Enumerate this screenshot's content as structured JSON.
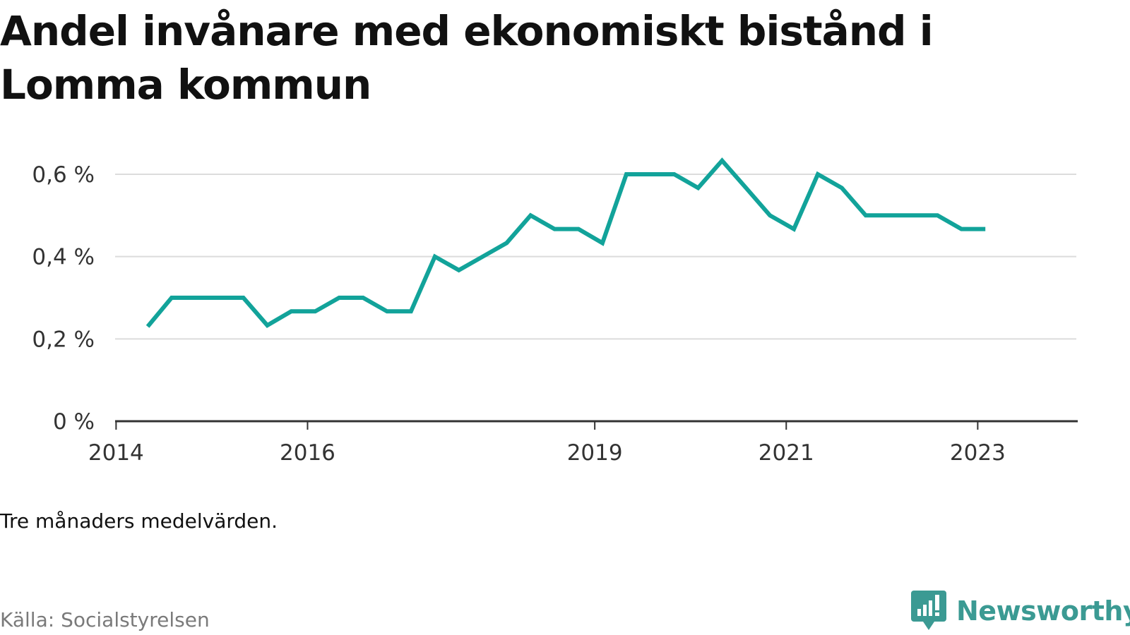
{
  "title": "Andel invånare med ekonomiskt bistånd i Lomma kommun",
  "note": "Tre månaders medelvärden.",
  "source": "Källa: Socialstyrelsen",
  "brand": {
    "name": "Newsworthy",
    "color": "#3b9a93",
    "icon": "chart-speech-bubble-icon"
  },
  "chart_data": {
    "type": "line",
    "title": "Andel invånare med ekonomiskt bistånd i Lomma kommun",
    "xlabel": "",
    "ylabel": "",
    "line_color": "#12a39a",
    "grid": true,
    "x_ticks": [
      {
        "label": "2014",
        "x": 2014.0
      },
      {
        "label": "2016",
        "x": 2016.0
      },
      {
        "label": "2019",
        "x": 2019.0
      },
      {
        "label": "2021",
        "x": 2021.0
      },
      {
        "label": "2023",
        "x": 2023.0
      }
    ],
    "y_ticks": [
      {
        "label": "0 %",
        "y": 0.0
      },
      {
        "label": "0,2 %",
        "y": 0.2
      },
      {
        "label": "0,4 %",
        "y": 0.4
      },
      {
        "label": "0,6 %",
        "y": 0.6
      }
    ],
    "xlim": [
      2013.99,
      2024.03
    ],
    "ylim": [
      0,
      0.6
    ],
    "series": [
      {
        "values": [
          {
            "x": 2014.33,
            "y": 0.23
          },
          {
            "x": 2014.58,
            "y": 0.3
          },
          {
            "x": 2014.83,
            "y": 0.3
          },
          {
            "x": 2015.08,
            "y": 0.3
          },
          {
            "x": 2015.33,
            "y": 0.3
          },
          {
            "x": 2015.58,
            "y": 0.233
          },
          {
            "x": 2015.83,
            "y": 0.267
          },
          {
            "x": 2016.08,
            "y": 0.267
          },
          {
            "x": 2016.33,
            "y": 0.3
          },
          {
            "x": 2016.58,
            "y": 0.3
          },
          {
            "x": 2016.83,
            "y": 0.267
          },
          {
            "x": 2017.08,
            "y": 0.267
          },
          {
            "x": 2017.33,
            "y": 0.4
          },
          {
            "x": 2017.58,
            "y": 0.367
          },
          {
            "x": 2017.83,
            "y": 0.4
          },
          {
            "x": 2018.08,
            "y": 0.433
          },
          {
            "x": 2018.33,
            "y": 0.5
          },
          {
            "x": 2018.58,
            "y": 0.467
          },
          {
            "x": 2018.83,
            "y": 0.467
          },
          {
            "x": 2019.08,
            "y": 0.433
          },
          {
            "x": 2019.33,
            "y": 0.6
          },
          {
            "x": 2019.58,
            "y": 0.6
          },
          {
            "x": 2019.83,
            "y": 0.6
          },
          {
            "x": 2020.08,
            "y": 0.567
          },
          {
            "x": 2020.33,
            "y": 0.633
          },
          {
            "x": 2020.58,
            "y": 0.567
          },
          {
            "x": 2020.83,
            "y": 0.5
          },
          {
            "x": 2021.08,
            "y": 0.467
          },
          {
            "x": 2021.33,
            "y": 0.6
          },
          {
            "x": 2021.58,
            "y": 0.567
          },
          {
            "x": 2021.83,
            "y": 0.5
          },
          {
            "x": 2022.08,
            "y": 0.5
          },
          {
            "x": 2022.33,
            "y": 0.5
          },
          {
            "x": 2022.58,
            "y": 0.5
          },
          {
            "x": 2022.83,
            "y": 0.467
          },
          {
            "x": 2023.08,
            "y": 0.467
          }
        ]
      }
    ]
  }
}
